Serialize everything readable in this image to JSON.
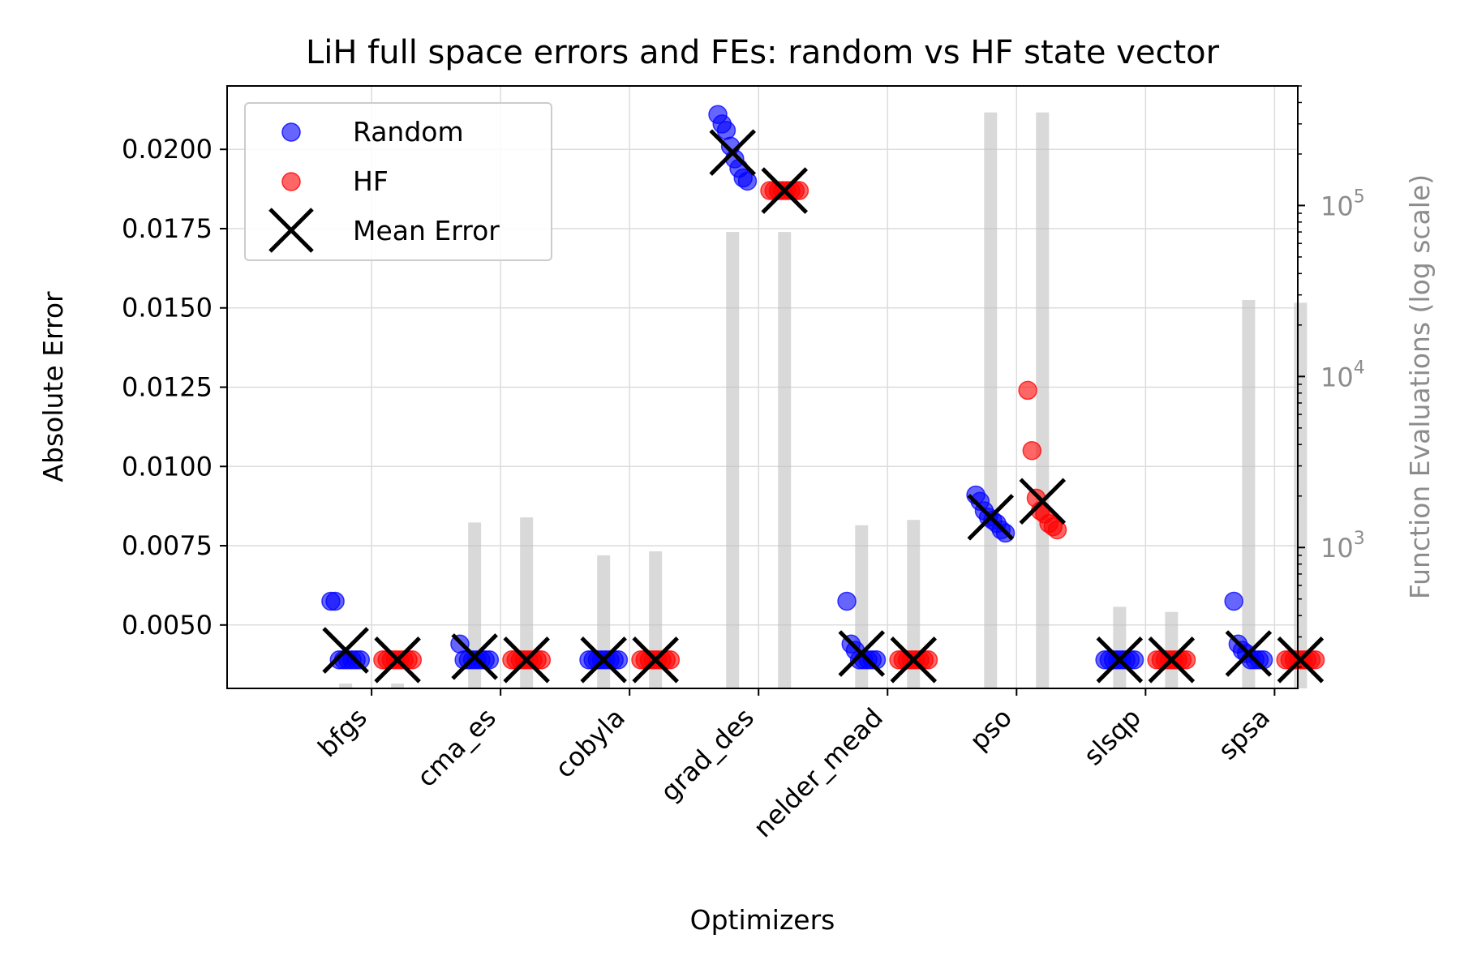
{
  "chart_data": {
    "type": "scatter",
    "title": "LiH full space errors and FEs: random vs HF state vector",
    "xlabel": "Optimizers",
    "ylabel": "Absolute Error",
    "y2label": "Function Evaluations (log scale)",
    "categories": [
      "bfgs",
      "cma_es",
      "cobyla",
      "grad_des",
      "nelder_mead",
      "pso",
      "slsqp",
      "spsa"
    ],
    "ylim": [
      0.003,
      0.022
    ],
    "y_ticks": [
      0.005,
      0.0075,
      0.01,
      0.0125,
      0.015,
      0.0175,
      0.02
    ],
    "y_tick_labels": [
      "0.0050",
      "0.0075",
      "0.0100",
      "0.0125",
      "0.0150",
      "0.0175",
      "0.0200"
    ],
    "y2_scale": "log",
    "y2lim": [
      150,
      500000
    ],
    "y2_ticks": [
      1000,
      10000,
      100000
    ],
    "y2_tick_base": "10",
    "y2_tick_exponents": [
      "3",
      "4",
      "5"
    ],
    "grid": true,
    "legend": {
      "placement": "top-left",
      "entries": [
        {
          "label": "Random",
          "marker": "circle",
          "color": "#0000ff"
        },
        {
          "label": "HF",
          "marker": "circle",
          "color": "#ff0000"
        },
        {
          "label": "Mean Error",
          "marker": "x",
          "color": "#000000"
        }
      ]
    },
    "series": [
      {
        "name": "Random",
        "color": "#0000ff",
        "errors": [
          [
            0.00575,
            0.00575,
            0.0039,
            0.0039,
            0.0039,
            0.0039,
            0.0039,
            0.0039
          ],
          [
            0.0044,
            0.0039,
            0.0039,
            0.0039,
            0.0039,
            0.0039,
            0.0039,
            0.0039
          ],
          [
            0.0039,
            0.0039,
            0.0039,
            0.0039,
            0.0039,
            0.0039,
            0.0039,
            0.0039
          ],
          [
            0.0211,
            0.0208,
            0.0206,
            0.0201,
            0.0197,
            0.0194,
            0.0191,
            0.019
          ],
          [
            0.00575,
            0.0044,
            0.0042,
            0.0039,
            0.0039,
            0.0039,
            0.0039,
            0.0039
          ],
          [
            0.0091,
            0.0089,
            0.0086,
            0.0084,
            0.0083,
            0.0082,
            0.008,
            0.0079
          ],
          [
            0.0039,
            0.0039,
            0.0039,
            0.0039,
            0.0039,
            0.0039,
            0.0039,
            0.0039
          ],
          [
            0.00575,
            0.0044,
            0.0042,
            0.0041,
            0.0039,
            0.0039,
            0.0039,
            0.0039
          ]
        ],
        "mean_error": [
          0.0042,
          0.004,
          0.0039,
          0.0199,
          0.0041,
          0.0084,
          0.0039,
          0.0041
        ],
        "function_evaluations": [
          160,
          1400,
          900,
          70000,
          1350,
          350000,
          450,
          28000
        ]
      },
      {
        "name": "HF",
        "color": "#ff0000",
        "errors": [
          [
            0.0039,
            0.0039,
            0.0039,
            0.0039,
            0.0039,
            0.0039,
            0.0039,
            0.0039
          ],
          [
            0.0039,
            0.0039,
            0.0039,
            0.0039,
            0.0039,
            0.0039,
            0.0039,
            0.0039
          ],
          [
            0.0039,
            0.0039,
            0.0039,
            0.0039,
            0.0039,
            0.0039,
            0.0039,
            0.0039
          ],
          [
            0.0187,
            0.0187,
            0.0187,
            0.0187,
            0.0187,
            0.0187,
            0.0187,
            0.0187
          ],
          [
            0.0039,
            0.0039,
            0.0039,
            0.0039,
            0.0039,
            0.0039,
            0.0039,
            0.0039
          ],
          [
            0.0124,
            0.0105,
            0.009,
            0.0086,
            0.0085,
            0.0082,
            0.0081,
            0.008
          ],
          [
            0.0039,
            0.0039,
            0.0039,
            0.0039,
            0.0039,
            0.0039,
            0.0039,
            0.0039
          ],
          [
            0.0039,
            0.0039,
            0.0039,
            0.0039,
            0.0039,
            0.0039,
            0.0039,
            0.0039
          ]
        ],
        "mean_error": [
          0.0039,
          0.0039,
          0.0039,
          0.0187,
          0.0039,
          0.0089,
          0.0039,
          0.0039
        ],
        "function_evaluations": [
          160,
          1500,
          950,
          70000,
          1450,
          350000,
          420,
          27000
        ]
      }
    ]
  }
}
